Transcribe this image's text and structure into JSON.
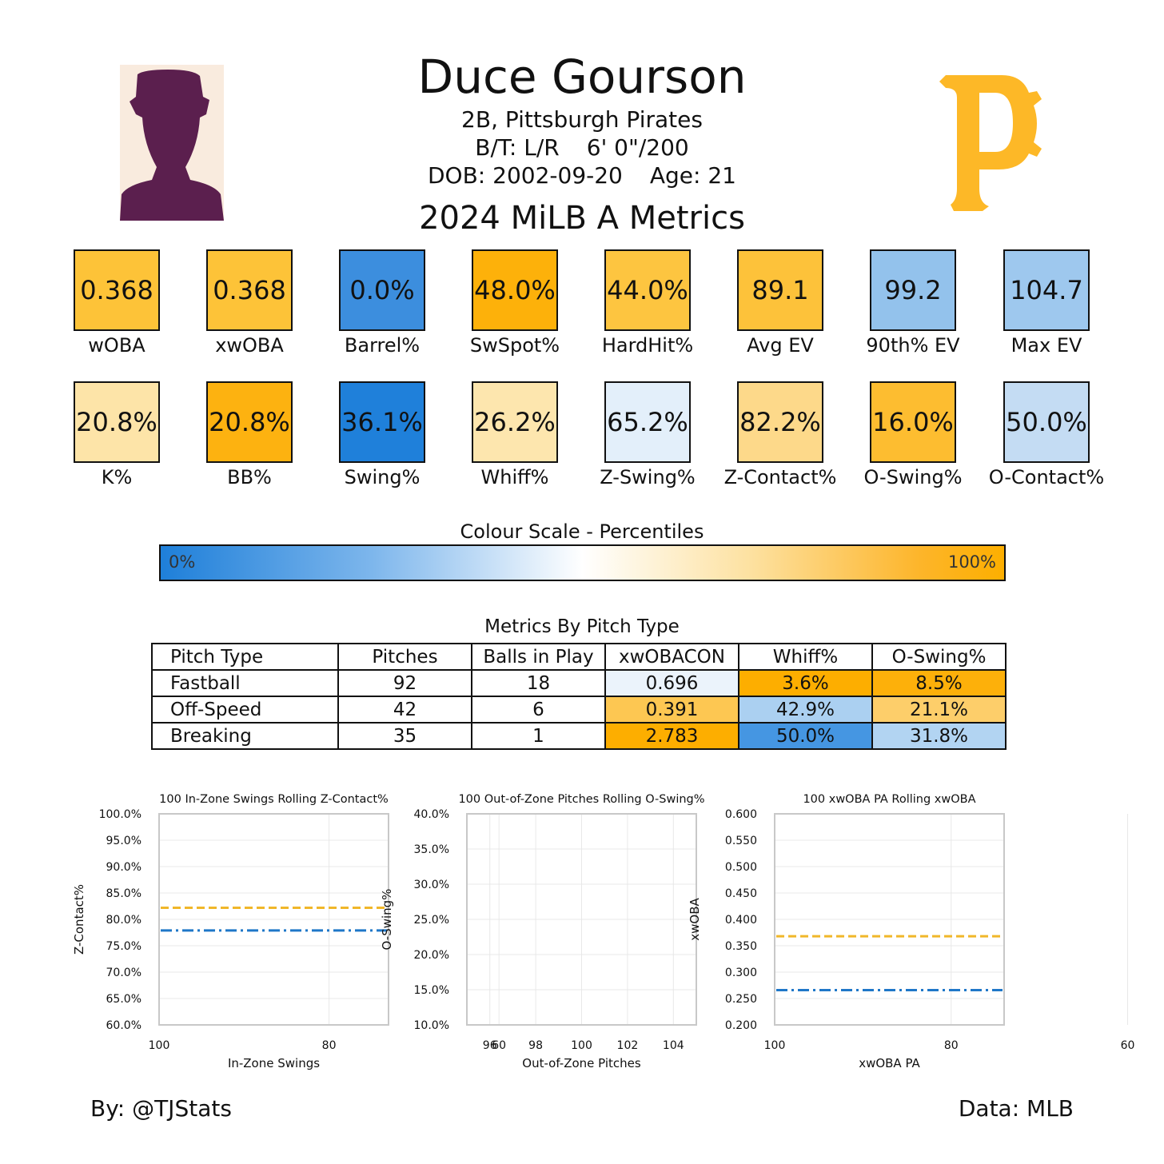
{
  "player": {
    "name": "Duce Gourson",
    "position_team": "2B, Pittsburgh Pirates",
    "bats_throws": "B/T: L/R",
    "height_weight": "6' 0\"/200",
    "dob": "DOB: 2002-09-20",
    "age": "Age: 21"
  },
  "metrics_title": "2024 MiLB A Metrics",
  "tiles_row1": [
    {
      "label": "wOBA",
      "value": "0.368",
      "color": "#fdc338"
    },
    {
      "label": "xwOBA",
      "value": "0.368",
      "color": "#fdc338"
    },
    {
      "label": "Barrel%",
      "value": "0.0%",
      "color": "#3c8ede"
    },
    {
      "label": "SwSpot%",
      "value": "48.0%",
      "color": "#fdb10a"
    },
    {
      "label": "HardHit%",
      "value": "44.0%",
      "color": "#fdc540"
    },
    {
      "label": "Avg EV",
      "value": "89.1",
      "color": "#fdc23a"
    },
    {
      "label": "90th% EV",
      "value": "99.2",
      "color": "#93c2ec"
    },
    {
      "label": "Max EV",
      "value": "104.7",
      "color": "#9ec8ee"
    }
  ],
  "tiles_row2": [
    {
      "label": "K%",
      "value": "20.8%",
      "color": "#fde4a8"
    },
    {
      "label": "BB%",
      "value": "20.8%",
      "color": "#fdb210"
    },
    {
      "label": "Swing%",
      "value": "36.1%",
      "color": "#1f80da"
    },
    {
      "label": "Whiff%",
      "value": "26.2%",
      "color": "#fde6ae"
    },
    {
      "label": "Z-Swing%",
      "value": "65.2%",
      "color": "#e3effa"
    },
    {
      "label": "Z-Contact%",
      "value": "82.2%",
      "color": "#fdd98a"
    },
    {
      "label": "O-Swing%",
      "value": "16.0%",
      "color": "#fdbd30"
    },
    {
      "label": "O-Contact%",
      "value": "50.0%",
      "color": "#c4dcf3"
    }
  ],
  "color_scale": {
    "title": "Colour Scale - Percentiles",
    "min_label": "0%",
    "max_label": "100%"
  },
  "pitch_table": {
    "title": "Metrics By Pitch Type",
    "headers": [
      "Pitch Type",
      "Pitches",
      "Balls in Play",
      "xwOBACON",
      "Whiff%",
      "O-Swing%"
    ],
    "rows": [
      {
        "cells": [
          "Fastball",
          "92",
          "18",
          "0.696",
          "3.6%",
          "8.5%"
        ],
        "colors": [
          "#ffffff",
          "#ffffff",
          "#ffffff",
          "#ebf3fb",
          "#fdae00",
          "#fdb00a"
        ]
      },
      {
        "cells": [
          "Off-Speed",
          "42",
          "6",
          "0.391",
          "42.9%",
          "21.1%"
        ],
        "colors": [
          "#ffffff",
          "#ffffff",
          "#ffffff",
          "#fdc752",
          "#abd0f1",
          "#fdce6a"
        ]
      },
      {
        "cells": [
          "Breaking",
          "35",
          "1",
          "2.783",
          "50.0%",
          "31.8%"
        ],
        "colors": [
          "#ffffff",
          "#ffffff",
          "#ffffff",
          "#fdae00",
          "#4596e2",
          "#b2d4f2"
        ]
      }
    ]
  },
  "chart_data": [
    {
      "type": "line",
      "title": "100 In-Zone Swings Rolling Z-Contact%",
      "xlabel": "In-Zone Swings",
      "ylabel": "Z-Contact%",
      "xlim": [
        100,
        73
      ],
      "xticks": [
        "100",
        "80",
        "60"
      ],
      "ylim": [
        0.6,
        1.0
      ],
      "yticks": [
        "60.0%",
        "65.0%",
        "70.0%",
        "75.0%",
        "80.0%",
        "85.0%",
        "90.0%",
        "95.0%",
        "100.0%"
      ],
      "grid": true,
      "reference_lines": [
        {
          "style": "dashed",
          "color": "#f0b72a",
          "y": 0.822
        },
        {
          "style": "dashdot",
          "color": "#1f77c8",
          "y": 0.779
        }
      ]
    },
    {
      "type": "line",
      "title": "100 Out-of-Zone Pitches Rolling O-Swing%",
      "xlabel": "Out-of-Zone Pitches",
      "ylabel": "O-Swing%",
      "xlim": [
        95,
        105
      ],
      "xticks": [
        "96",
        "98",
        "100",
        "102",
        "104"
      ],
      "ylim": [
        0.1,
        0.4
      ],
      "yticks": [
        "10.0%",
        "15.0%",
        "20.0%",
        "25.0%",
        "30.0%",
        "35.0%",
        "40.0%"
      ],
      "grid": true,
      "reference_lines": []
    },
    {
      "type": "line",
      "title": "100 xwOBA PA Rolling xwOBA",
      "xlabel": "xwOBA PA",
      "ylabel": "xwOBA",
      "xlim": [
        100,
        74
      ],
      "xticks": [
        "100",
        "80",
        "60"
      ],
      "ylim": [
        0.2,
        0.6
      ],
      "yticks": [
        "0.200",
        "0.250",
        "0.300",
        "0.350",
        "0.400",
        "0.450",
        "0.500",
        "0.550",
        "0.600"
      ],
      "grid": true,
      "reference_lines": [
        {
          "style": "dashed",
          "color": "#f0b72a",
          "y": 0.368
        },
        {
          "style": "dashdot",
          "color": "#1f77c8",
          "y": 0.266
        }
      ]
    }
  ],
  "footer": {
    "left": "By: @TJStats",
    "right": "Data: MLB"
  }
}
